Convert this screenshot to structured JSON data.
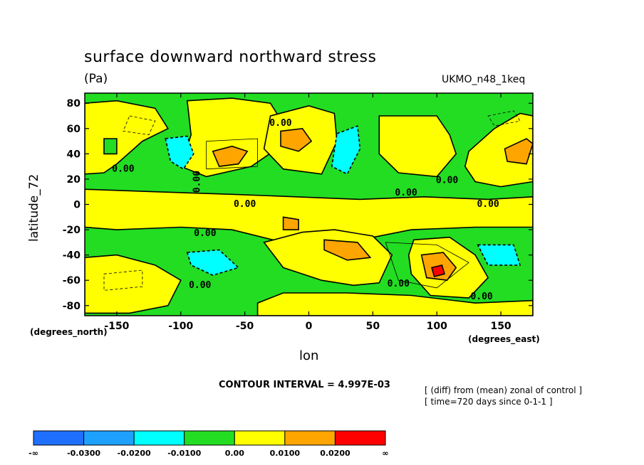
{
  "chart_data": {
    "type": "heatmap",
    "title": "surface downward northward stress",
    "units": "(Pa)",
    "model_label": "UKMO_n48_1keq",
    "xlabel": "lon",
    "ylabel": "latitude_72",
    "x_unit_label": "(degrees_east)",
    "y_unit_label": "(degrees_north)",
    "xlim": [
      -175,
      175
    ],
    "ylim": [
      -88,
      88
    ],
    "x_ticks": [
      -150,
      -100,
      -50,
      0,
      50,
      100,
      150
    ],
    "y_ticks": [
      80,
      60,
      40,
      20,
      0,
      -20,
      -40,
      -60,
      -80
    ],
    "contour_interval": "CONTOUR INTERVAL = 4.997E-03",
    "contour_labels": [
      "0.00"
    ],
    "notes": [
      "[ (diff) from (mean) zonal of control ]",
      "[ time=720 days since 0-1-1 ]"
    ],
    "colorbar": {
      "boundaries": [
        "-∞",
        "-0.0300",
        "-0.0200",
        "-0.0100",
        "0.00",
        "0.0100",
        "0.0200",
        "∞"
      ],
      "colors": [
        "#1f6fff",
        "#1ea0ff",
        "#00ffff",
        "#22dd22",
        "#ffff00",
        "#ffa500",
        "#ff0000"
      ]
    },
    "regions": [
      {
        "level": "positive",
        "lon": -165,
        "lat": 50,
        "value": 0.008
      },
      {
        "level": "positive",
        "lon": -60,
        "lat": 38,
        "value": 0.015
      },
      {
        "level": "positive",
        "lon": -10,
        "lat": 52,
        "value": 0.012
      },
      {
        "level": "positive",
        "lon": 80,
        "lat": 45,
        "value": 0.011
      },
      {
        "level": "positive",
        "lon": 165,
        "lat": 40,
        "value": 0.016
      },
      {
        "level": "positive",
        "lon": 25,
        "lat": -32,
        "value": 0.014
      },
      {
        "level": "positive",
        "lon": 102,
        "lat": -52,
        "value": 0.025
      },
      {
        "level": "negative",
        "lon": -100,
        "lat": 45,
        "value": -0.012
      },
      {
        "level": "negative",
        "lon": 30,
        "lat": 42,
        "value": -0.013
      },
      {
        "level": "negative",
        "lon": -75,
        "lat": -45,
        "value": -0.012
      },
      {
        "level": "negative",
        "lon": 150,
        "lat": -40,
        "value": -0.011
      }
    ]
  }
}
